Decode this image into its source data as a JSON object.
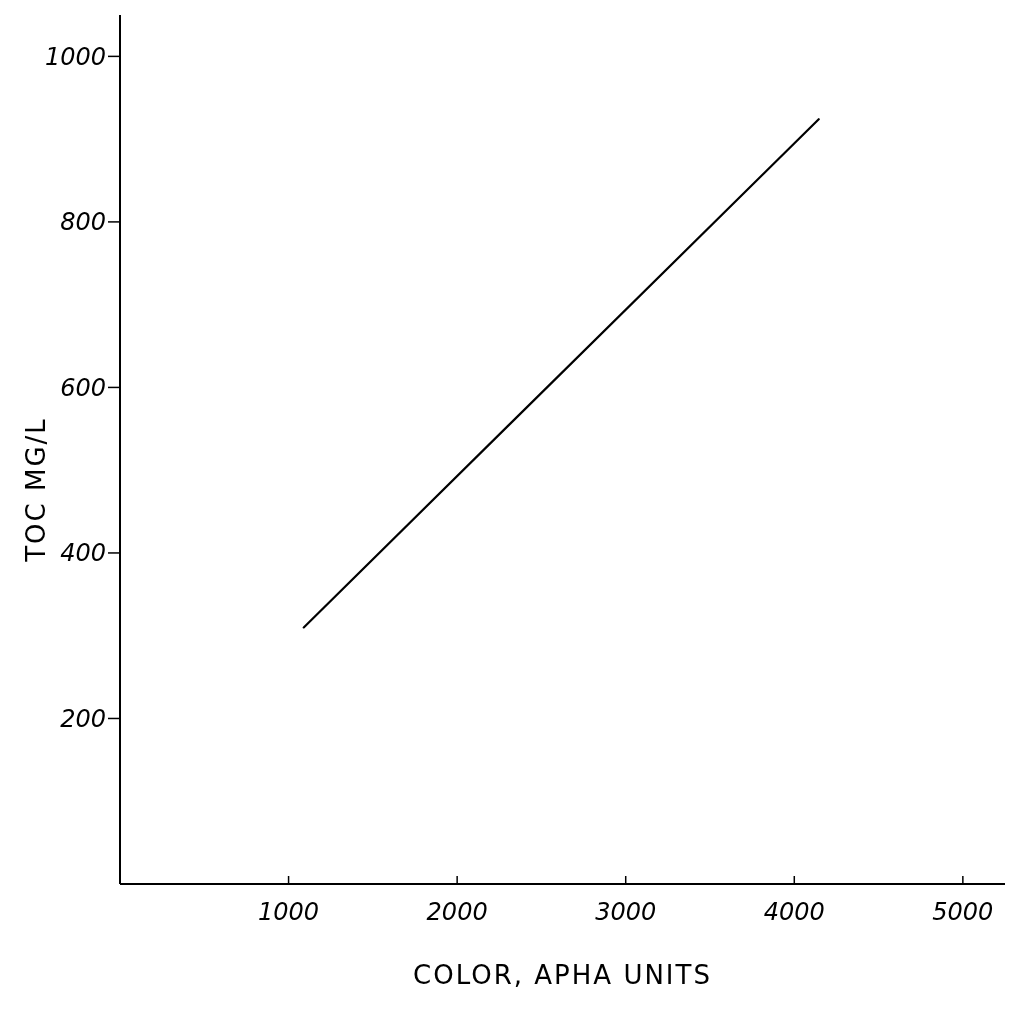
{
  "chart_data": {
    "type": "line",
    "xlabel": "COLOR, APHA UNITS",
    "ylabel": "TOC MG/L",
    "x": [
      1090,
      4145
    ],
    "series": [
      {
        "color": "#000000",
        "values": [
          310,
          924
        ]
      }
    ],
    "xlim": [
      0,
      5250
    ],
    "xticks": [
      1000,
      2000,
      3000,
      4000,
      5000
    ],
    "ylim": [
      0,
      1050
    ],
    "yticks": [
      200,
      400,
      600,
      800,
      1000
    ],
    "grid": false,
    "legend": false,
    "marker": "none",
    "line_style": "solid"
  }
}
